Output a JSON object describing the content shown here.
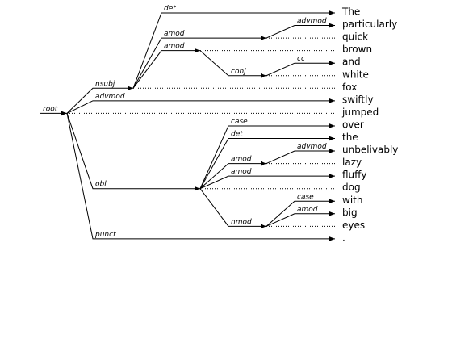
{
  "words": [
    "The",
    "particularly",
    "quick",
    "brown",
    "and",
    "white",
    "fox",
    "swiftly",
    "jumped",
    "over",
    "the",
    "unbelivably",
    "lazy",
    "fluffy",
    "dog",
    "with",
    "big",
    "eyes",
    "."
  ],
  "relations": [
    "root",
    "nsubj",
    "advmod",
    "obl",
    "punct",
    "det",
    "amod",
    "advmod",
    "amod",
    "conj",
    "cc",
    "case",
    "det",
    "amod",
    "advmod",
    "amod",
    "nmod",
    "case",
    "amod"
  ]
}
